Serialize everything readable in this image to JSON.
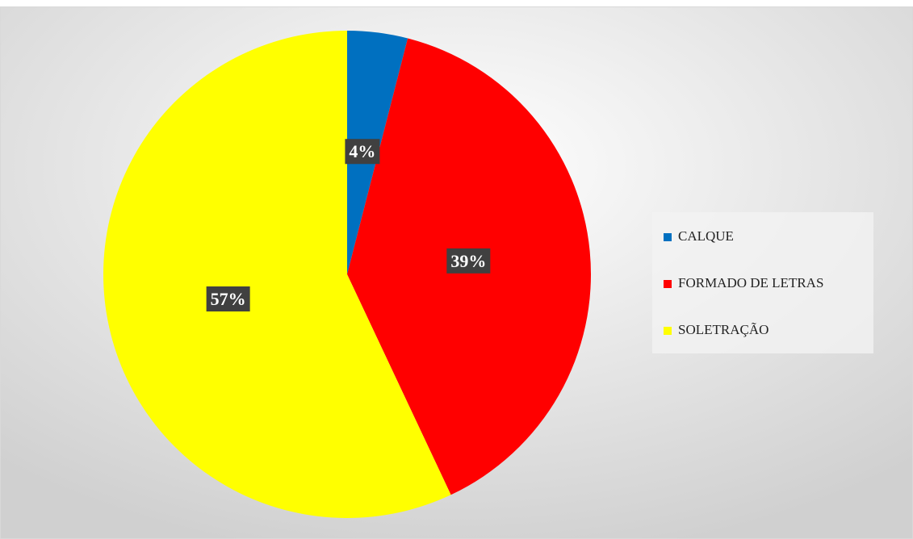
{
  "chart_data": {
    "type": "pie",
    "categories": [
      "CALQUE",
      "FORMADO DE LETRAS",
      "SOLETRAÇÃO"
    ],
    "values": [
      4,
      39,
      57
    ],
    "value_labels": [
      "4%",
      "39%",
      "57%"
    ],
    "colors": [
      "#0070c0",
      "#ff0000",
      "#ffff00"
    ],
    "legend": "right"
  }
}
